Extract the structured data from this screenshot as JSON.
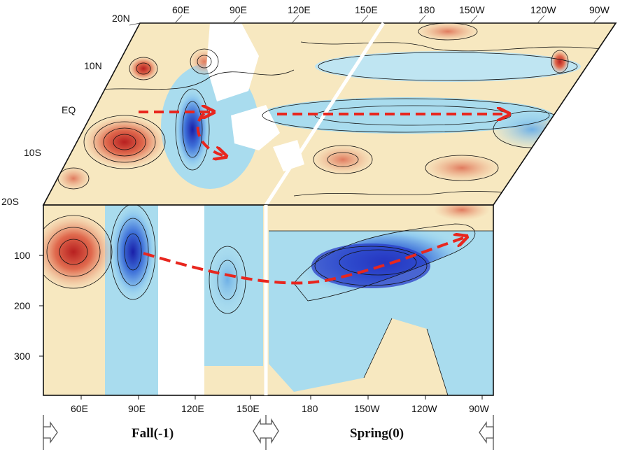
{
  "map_panel": {
    "lat_labels": [
      "20N",
      "10N",
      "EQ",
      "10S",
      "20S"
    ],
    "top_lon_labels": [
      "60E",
      "90E",
      "120E",
      "150E",
      "180",
      "150W",
      "120W",
      "90W"
    ]
  },
  "section_panel": {
    "depth_labels": [
      "100",
      "200",
      "300"
    ],
    "lon_labels": [
      "60E",
      "90E",
      "120E",
      "150E",
      "180",
      "150W",
      "120W",
      "90W"
    ]
  },
  "seasons": {
    "fall": "Fall(-1)",
    "spring": "Spring(0)"
  },
  "colors": {
    "warm": "#e8a07a",
    "warm_strong": "#d9503f",
    "cool": "#a9dcee",
    "cool_strong": "#2a3ec8",
    "neutral": "#f7e8c0",
    "arrow": "#e8261e"
  }
}
